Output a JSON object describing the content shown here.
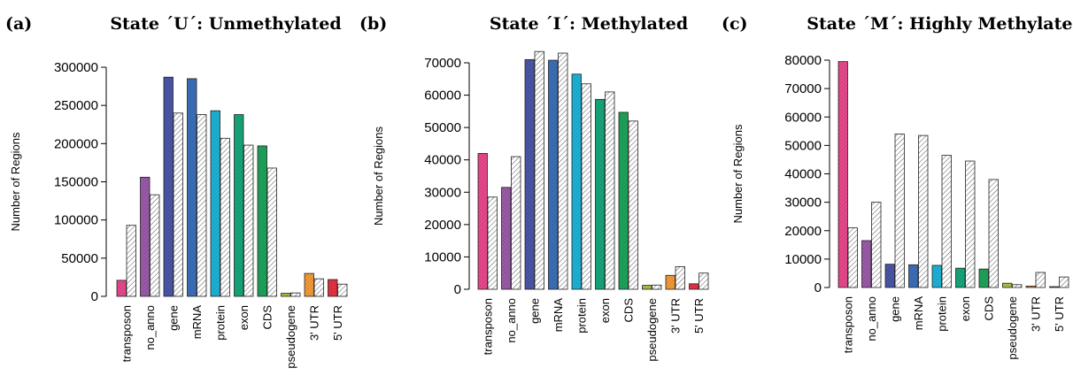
{
  "chart_data": [
    {
      "type": "bar",
      "panel_label": "(a)",
      "title": "State ´U´: Unmethylated",
      "ylabel": "Number of Regions",
      "xlabel": "",
      "ylim": [
        0,
        300000
      ],
      "y_ticks": [
        "0",
        "50000",
        "100000",
        "150000",
        "200000",
        "250000",
        "300000"
      ],
      "categories": [
        "transposon",
        "no_anno",
        "gene",
        "mRNA",
        "protein",
        "exon",
        "CDS",
        "pseudogene",
        "3' UTR",
        "5' UTR"
      ],
      "series": [
        {
          "values": [
            21000,
            156000,
            287000,
            285000,
            243000,
            238000,
            197000,
            4000,
            30000,
            22000
          ]
        },
        {
          "values": [
            93000,
            133000,
            240000,
            238000,
            207000,
            198000,
            168000,
            4500,
            23000,
            16000
          ]
        }
      ]
    },
    {
      "type": "bar",
      "panel_label": "(b)",
      "title": "State ´I´: Methylated",
      "ylabel": "Number of Regions",
      "xlabel": "",
      "ylim": [
        0,
        70000
      ],
      "y_ticks": [
        "0",
        "10000",
        "20000",
        "30000",
        "40000",
        "50000",
        "60000",
        "70000"
      ],
      "categories": [
        "transposon",
        "no_anno",
        "gene",
        "mRNA",
        "protein",
        "exon",
        "CDS",
        "pseudogene",
        "3' UTR",
        "5' UTR"
      ],
      "series": [
        {
          "values": [
            42000,
            31500,
            71000,
            70800,
            66500,
            58700,
            54700,
            1200,
            4300,
            1700
          ]
        },
        {
          "values": [
            28500,
            41000,
            73500,
            73000,
            63500,
            61000,
            52000,
            1300,
            7000,
            5000
          ]
        }
      ]
    },
    {
      "type": "bar",
      "panel_label": "(c)",
      "title": "State ´M´: Highly Methylated",
      "ylabel": "Number of Regions",
      "xlabel": "",
      "ylim": [
        0,
        80000
      ],
      "y_ticks": [
        "0",
        "10000",
        "20000",
        "30000",
        "40000",
        "50000",
        "60000",
        "70000",
        "80000"
      ],
      "categories": [
        "transposon",
        "no_anno",
        "gene",
        "mRNA",
        "protein",
        "exon",
        "CDS",
        "pseudogene",
        "3' UTR",
        "5' UTR"
      ],
      "series": [
        {
          "values": [
            79500,
            16500,
            8200,
            8000,
            7800,
            6800,
            6500,
            1500,
            500,
            300
          ]
        },
        {
          "values": [
            21000,
            30000,
            54000,
            53500,
            46500,
            44500,
            38000,
            1000,
            5300,
            3700
          ]
        }
      ]
    }
  ],
  "colors": {
    "categories": [
      "#e8488c",
      "#9a5ba8",
      "#4a56a8",
      "#3b6fb8",
      "#1eb2d6",
      "#16a67a",
      "#1ea35a",
      "#a9c244",
      "#f29a38",
      "#e53240"
    ],
    "second_series": "hatched-white"
  }
}
